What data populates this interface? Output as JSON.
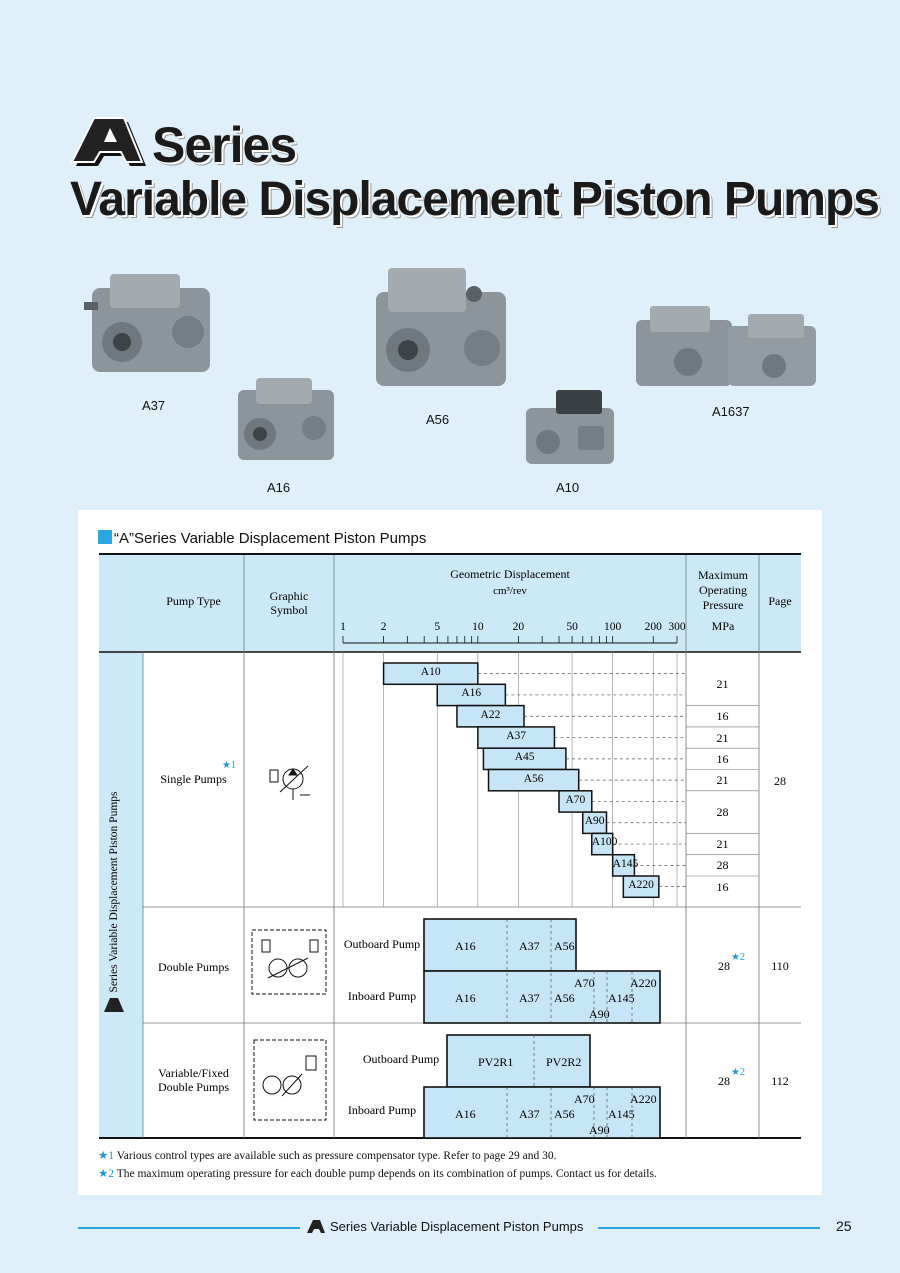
{
  "heading": {
    "logo_letter": "A",
    "series": "Series",
    "subtitle": "Variable Displacement Piston Pumps"
  },
  "photos": [
    {
      "label": "A37"
    },
    {
      "label": "A16"
    },
    {
      "label": "A56"
    },
    {
      "label": "A10"
    },
    {
      "label": "A1637"
    }
  ],
  "table": {
    "title": "“A”Series Variable Displacement Piston Pumps",
    "headers": {
      "pump_type": "Pump Type",
      "graphic_symbol": "Graphic Symbol",
      "displacement": "Geometric Displacement",
      "displacement_unit": "cm³/rev",
      "max_pressure": "Maximum Operating Pressure",
      "pressure_unit": "MPa",
      "page": "Page"
    },
    "scale_ticks": [
      "1",
      "2",
      "5",
      "10",
      "20",
      "50",
      "100",
      "200",
      "300"
    ],
    "side_label": "Series Variable Displacement Piston Pumps",
    "single": {
      "label": "Single Pumps",
      "note": "★1",
      "page": "28",
      "bars": [
        {
          "name": "A10",
          "min": 2,
          "max": 10
        },
        {
          "name": "A16",
          "min": 5,
          "max": 16
        },
        {
          "name": "A22",
          "min": 7,
          "max": 22
        },
        {
          "name": "A37",
          "min": 10,
          "max": 37
        },
        {
          "name": "A45",
          "min": 11,
          "max": 45
        },
        {
          "name": "A56",
          "min": 12,
          "max": 56
        },
        {
          "name": "A70",
          "min": 40,
          "max": 70
        },
        {
          "name": "A90",
          "min": 60,
          "max": 90
        },
        {
          "name": "A100",
          "min": 70,
          "max": 100
        },
        {
          "name": "A145",
          "min": 100,
          "max": 145
        },
        {
          "name": "A220",
          "min": 120,
          "max": 220
        }
      ],
      "pressures": [
        "21",
        "16",
        "21",
        "16",
        "21",
        "28",
        "21",
        "28",
        "16"
      ]
    },
    "double": {
      "label": "Double Pumps",
      "outboard_label": "Outboard Pump",
      "inboard_label": "Inboard Pump",
      "outboard_items": [
        "A16",
        "A37",
        "A56"
      ],
      "inboard_items": [
        "A16",
        "A37",
        "A56",
        "A70",
        "A90",
        "A145",
        "A220"
      ],
      "pressure": "28",
      "pressure_note": "★2",
      "page": "110"
    },
    "varfixed": {
      "label_line1": "Variable/Fixed",
      "label_line2": "Double Pumps",
      "outboard_label": "Outboard Pump",
      "inboard_label": "Inboard Pump",
      "outboard_items": [
        "PV2R1",
        "PV2R2"
      ],
      "inboard_items": [
        "A16",
        "A37",
        "A56",
        "A70",
        "A90",
        "A145",
        "A220"
      ],
      "pressure": "28",
      "pressure_note": "★2",
      "page": "112"
    }
  },
  "footnotes": [
    {
      "mark": "★1",
      "text": "Various control types are available such as pressure compensator type. Refer to page 29 and 30."
    },
    {
      "mark": "★2",
      "text": "The maximum operating pressure for each double pump depends on its combination of pumps. Contact us for details."
    }
  ],
  "footer": {
    "text": "Series Variable Displacement Piston Pumps",
    "page_number": "25"
  },
  "colors": {
    "background": "#dff0fb",
    "accent": "#2aa6e0",
    "cell_fill": "#cce9f8",
    "bar_fill": "#c6e6f8"
  }
}
